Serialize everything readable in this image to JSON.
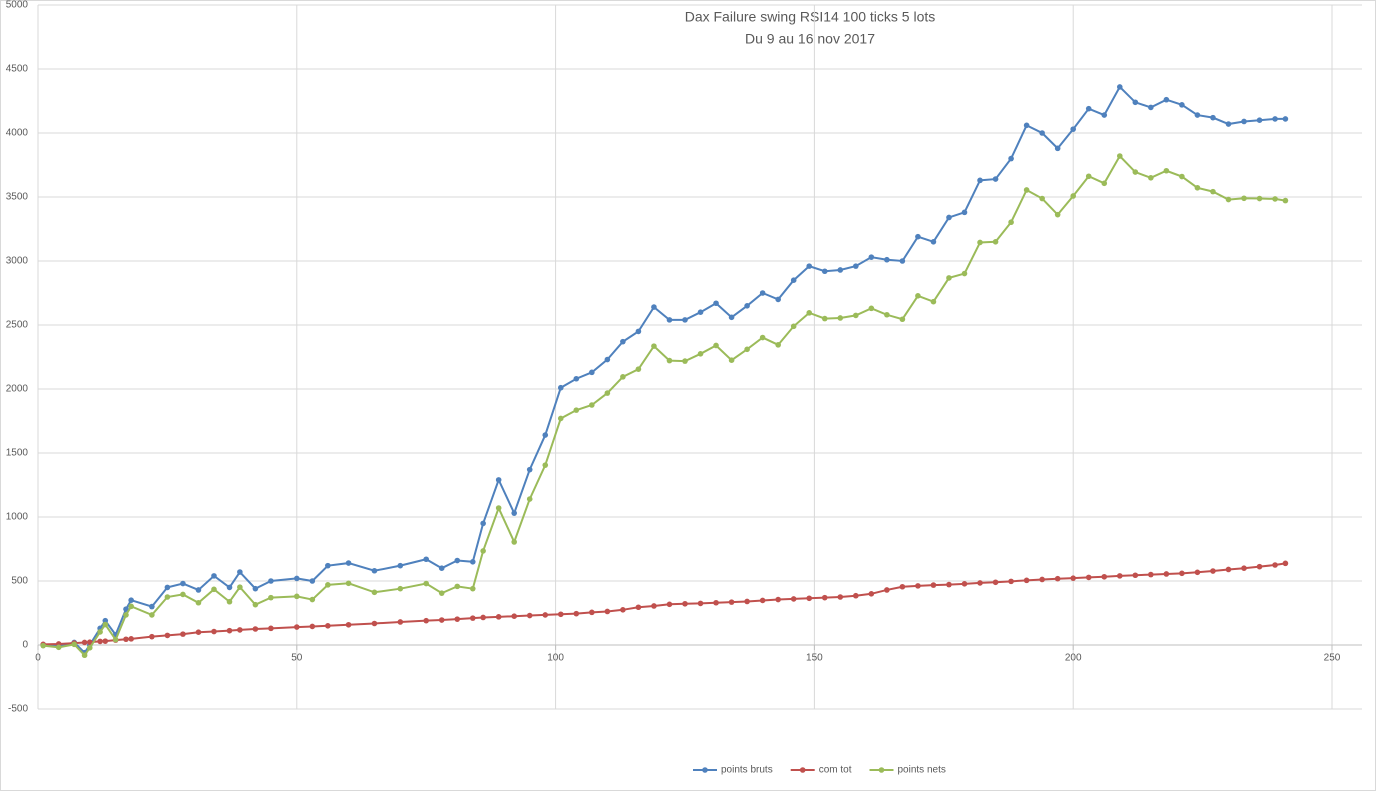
{
  "chart_data": {
    "type": "line",
    "title": "Dax Failure swing RSI14 100 ticks 5 lots",
    "subtitle": "Du 9 au 16 nov 2017",
    "x": [
      1,
      4,
      7,
      9,
      10,
      12,
      13,
      15,
      17,
      18,
      22,
      25,
      28,
      31,
      34,
      37,
      39,
      42,
      45,
      50,
      53,
      56,
      60,
      65,
      70,
      75,
      78,
      81,
      84,
      86,
      89,
      92,
      95,
      98,
      101,
      104,
      107,
      110,
      113,
      116,
      119,
      122,
      125,
      128,
      131,
      134,
      137,
      140,
      143,
      146,
      149,
      152,
      155,
      158,
      161,
      164,
      167,
      170,
      173,
      176,
      179,
      182,
      185,
      188,
      191,
      194,
      197,
      200,
      203,
      206,
      209,
      212,
      215,
      218,
      221,
      224,
      227,
      230,
      233,
      236,
      239,
      241
    ],
    "series": [
      {
        "name": "points bruts",
        "color": "#4f81bd",
        "values": [
          0,
          -10,
          20,
          -60,
          0,
          130,
          190,
          80,
          280,
          350,
          300,
          450,
          480,
          430,
          540,
          450,
          570,
          440,
          500,
          520,
          500,
          620,
          640,
          580,
          620,
          670,
          600,
          660,
          650,
          950,
          1290,
          1030,
          1370,
          1640,
          2010,
          2080,
          2130,
          2230,
          2370,
          2450,
          2640,
          2540,
          2540,
          2600,
          2670,
          2560,
          2650,
          2750,
          2700,
          2850,
          2960,
          2920,
          2930,
          2960,
          3030,
          3010,
          3000,
          3190,
          3150,
          3340,
          3380,
          3630,
          3640,
          3800,
          4060,
          4000,
          3880,
          4030,
          4190,
          4140,
          4360,
          4240,
          4200,
          4260,
          4220,
          4140,
          4120,
          4070,
          4090,
          4100,
          4110,
          4110
        ]
      },
      {
        "name": "com tot",
        "color": "#c0504d",
        "values": [
          5,
          8,
          15,
          20,
          22,
          28,
          30,
          38,
          45,
          48,
          65,
          75,
          85,
          100,
          105,
          112,
          118,
          125,
          130,
          140,
          145,
          150,
          158,
          168,
          180,
          190,
          195,
          202,
          210,
          215,
          220,
          225,
          230,
          235,
          240,
          245,
          255,
          262,
          275,
          295,
          305,
          318,
          322,
          325,
          330,
          335,
          340,
          348,
          355,
          360,
          365,
          370,
          375,
          385,
          400,
          430,
          455,
          462,
          468,
          472,
          478,
          485,
          490,
          497,
          505,
          512,
          518,
          522,
          528,
          533,
          540,
          545,
          550,
          555,
          560,
          568,
          578,
          590,
          600,
          612,
          625,
          638
        ]
      },
      {
        "name": "points nets",
        "color": "#9bbb59",
        "values": [
          -5,
          -18,
          5,
          -80,
          -22,
          102,
          160,
          42,
          235,
          302,
          235,
          375,
          395,
          330,
          435,
          338,
          452,
          315,
          370,
          380,
          355,
          470,
          482,
          412,
          440,
          480,
          405,
          458,
          440,
          735,
          1070,
          805,
          1140,
          1405,
          1770,
          1835,
          1875,
          1968,
          2095,
          2155,
          2335,
          2222,
          2218,
          2275,
          2340,
          2225,
          2310,
          2402,
          2345,
          2490,
          2595,
          2550,
          2555,
          2575,
          2630,
          2580,
          2545,
          2728,
          2682,
          2868,
          2902,
          3145,
          3150,
          3303,
          3555,
          3488,
          3362,
          3508,
          3662,
          3607,
          3820,
          3695,
          3650,
          3705,
          3660,
          3572,
          3542,
          3480,
          3490,
          3488,
          3485,
          3472
        ]
      }
    ],
    "xlim": [
      0,
      250
    ],
    "xticks": [
      0,
      50,
      100,
      150,
      200,
      250
    ],
    "ylim": [
      -500,
      5000
    ],
    "yticks": [
      -500,
      0,
      500,
      1000,
      1500,
      2000,
      2500,
      3000,
      3500,
      4000,
      4500,
      5000
    ],
    "grid": true,
    "legend": "bottom"
  }
}
